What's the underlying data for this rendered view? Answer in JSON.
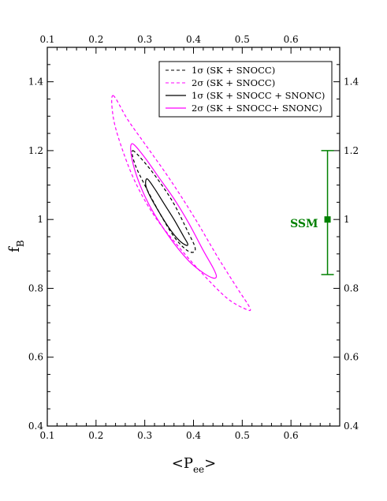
{
  "chart_data": {
    "type": "line",
    "xlabel": {
      "main": "<P",
      "sub": "ee",
      "end": ">"
    },
    "ylabel": {
      "main": "f",
      "sub": "B"
    },
    "xlim": [
      0.1,
      0.7
    ],
    "ylim": [
      0.4,
      1.5
    ],
    "x_ticks": [
      {
        "value": 0.1,
        "label": "0.1"
      },
      {
        "value": 0.2,
        "label": "0.2"
      },
      {
        "value": 0.3,
        "label": "0.3"
      },
      {
        "value": 0.4,
        "label": "0.4"
      },
      {
        "value": 0.5,
        "label": "0.5"
      },
      {
        "value": 0.6,
        "label": "0.6"
      }
    ],
    "y_ticks": [
      {
        "value": 0.4,
        "label": "0.4"
      },
      {
        "value": 0.6,
        "label": "0.6"
      },
      {
        "value": 0.8,
        "label": "0.8"
      },
      {
        "value": 1.0,
        "label": "1"
      },
      {
        "value": 1.2,
        "label": "1.2"
      },
      {
        "value": 1.4,
        "label": "1.4"
      }
    ],
    "legend_position": "top-right",
    "series": [
      {
        "name": "1σ (SK + SNOCC)",
        "color": "#000000",
        "dash": "dashed",
        "points": [
          [
            0.275,
            1.2
          ],
          [
            0.3,
            1.165
          ],
          [
            0.33,
            1.11
          ],
          [
            0.36,
            1.045
          ],
          [
            0.39,
            0.96
          ],
          [
            0.403,
            0.92
          ],
          [
            0.4,
            0.905
          ],
          [
            0.385,
            0.912
          ],
          [
            0.36,
            0.95
          ],
          [
            0.33,
            1.02
          ],
          [
            0.3,
            1.1
          ],
          [
            0.28,
            1.16
          ],
          [
            0.275,
            1.2
          ]
        ]
      },
      {
        "name": "2σ (SK + SNOCC)",
        "color": "#ff00ff",
        "dash": "dashed",
        "points": [
          [
            0.235,
            1.36
          ],
          [
            0.265,
            1.29
          ],
          [
            0.3,
            1.22
          ],
          [
            0.35,
            1.12
          ],
          [
            0.4,
            1.01
          ],
          [
            0.45,
            0.89
          ],
          [
            0.49,
            0.8
          ],
          [
            0.515,
            0.745
          ],
          [
            0.51,
            0.738
          ],
          [
            0.47,
            0.77
          ],
          [
            0.42,
            0.84
          ],
          [
            0.37,
            0.92
          ],
          [
            0.32,
            1.01
          ],
          [
            0.28,
            1.11
          ],
          [
            0.25,
            1.22
          ],
          [
            0.235,
            1.3
          ],
          [
            0.235,
            1.36
          ]
        ]
      },
      {
        "name": "1σ (SK + SNOCC + SNONC)",
        "color": "#000000",
        "dash": "solid",
        "points": [
          [
            0.305,
            1.118
          ],
          [
            0.32,
            1.09
          ],
          [
            0.34,
            1.045
          ],
          [
            0.36,
            1.0
          ],
          [
            0.38,
            0.95
          ],
          [
            0.388,
            0.93
          ],
          [
            0.385,
            0.925
          ],
          [
            0.37,
            0.94
          ],
          [
            0.35,
            0.975
          ],
          [
            0.33,
            1.02
          ],
          [
            0.31,
            1.07
          ],
          [
            0.302,
            1.1
          ],
          [
            0.305,
            1.118
          ]
        ]
      },
      {
        "name": "2σ (SK + SNOCC+ SNONC)",
        "color": "#ff00ff",
        "dash": "solid",
        "points": [
          [
            0.275,
            1.22
          ],
          [
            0.3,
            1.18
          ],
          [
            0.33,
            1.12
          ],
          [
            0.36,
            1.06
          ],
          [
            0.39,
            0.99
          ],
          [
            0.42,
            0.91
          ],
          [
            0.44,
            0.86
          ],
          [
            0.447,
            0.835
          ],
          [
            0.44,
            0.83
          ],
          [
            0.42,
            0.845
          ],
          [
            0.39,
            0.88
          ],
          [
            0.35,
            0.95
          ],
          [
            0.31,
            1.04
          ],
          [
            0.285,
            1.12
          ],
          [
            0.272,
            1.19
          ],
          [
            0.275,
            1.22
          ]
        ]
      }
    ],
    "reference_point": {
      "label": "SSM",
      "x": 0.675,
      "y": 1.0,
      "y_err_low": 0.84,
      "y_err_high": 1.2,
      "color": "#008000"
    }
  }
}
